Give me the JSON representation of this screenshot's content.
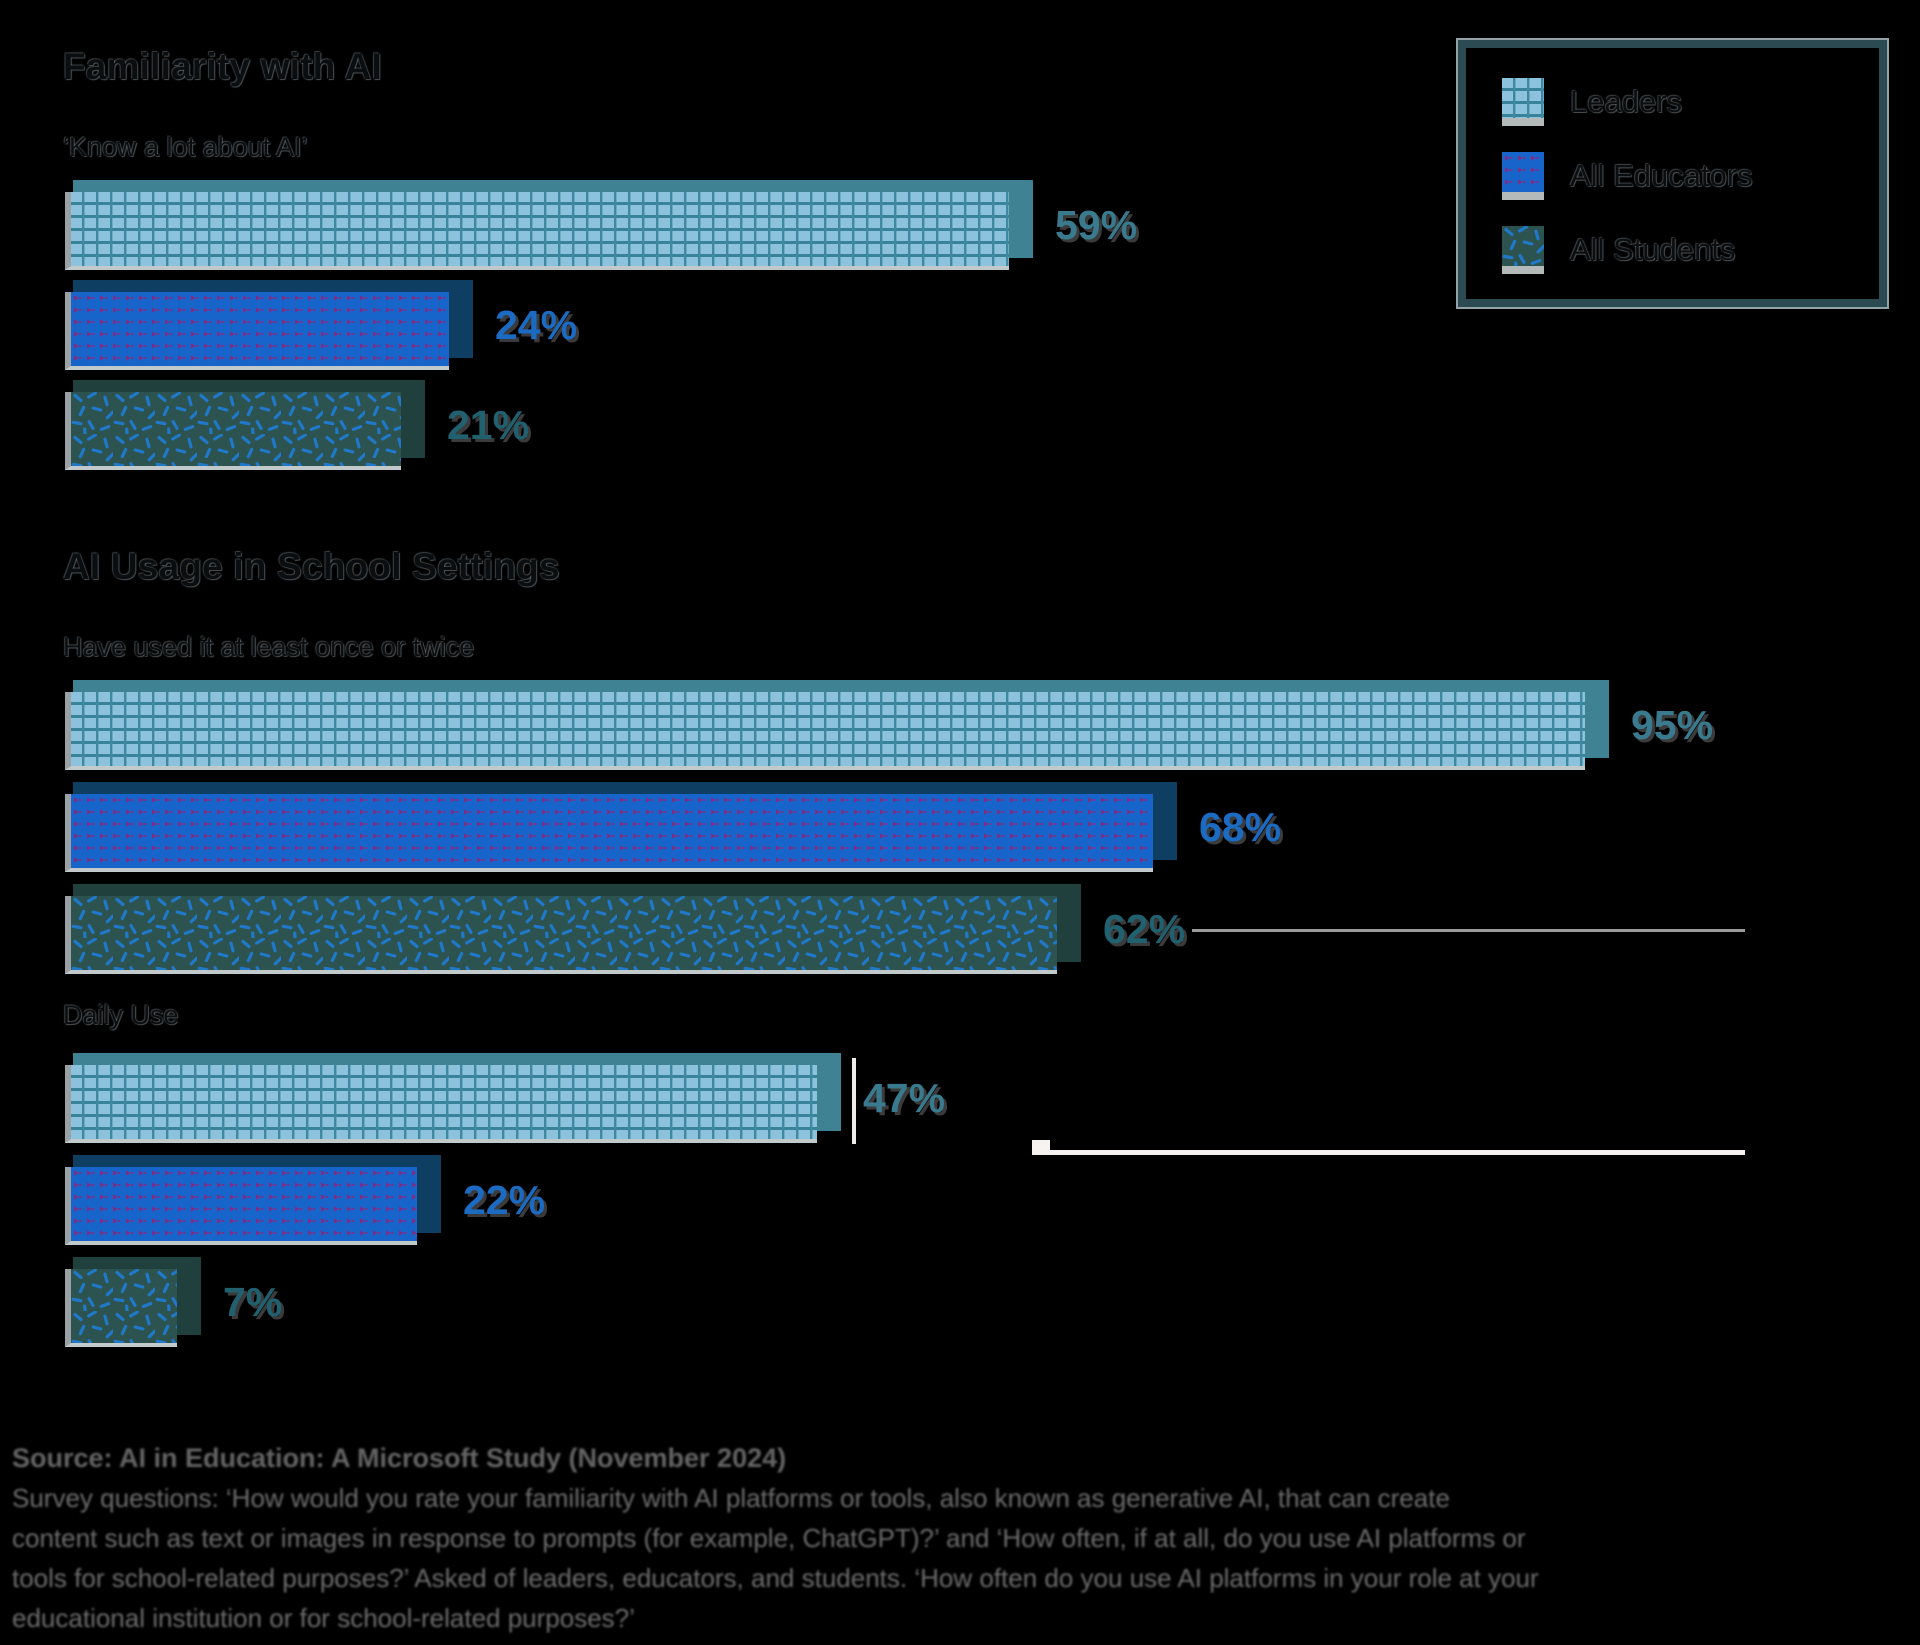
{
  "sections": {
    "familiarity": {
      "title": "Familiarity with AI",
      "subtitle": "‘Know a lot about AI’"
    },
    "usage": {
      "title": "AI Usage in School Settings",
      "subtitle_once": "Have used it at least once or twice",
      "subtitle_daily": "Daily Use"
    }
  },
  "legend": {
    "items": [
      {
        "label": "Leaders",
        "swatch": "grid-pattern-lightblue"
      },
      {
        "label": "All Educators",
        "swatch": "dot-pattern-blue"
      },
      {
        "label": "All Students",
        "swatch": "confetti-pattern-teal"
      }
    ]
  },
  "chart_data": {
    "type": "bar",
    "orientation": "horizontal",
    "unit": "percent",
    "xlim": [
      0,
      100
    ],
    "legend_position": "top-right",
    "series_names": [
      "Leaders",
      "All Educators",
      "All Students"
    ],
    "groups": [
      {
        "section": "Familiarity with AI",
        "measure": "'Know a lot about AI'",
        "values": [
          59,
          24,
          21
        ],
        "labels": [
          "59%",
          "24%",
          "21%"
        ]
      },
      {
        "section": "AI Usage in School Settings",
        "measure": "Have used it at least once or twice",
        "values": [
          95,
          68,
          62
        ],
        "labels": [
          "95%",
          "68%",
          "62%"
        ]
      },
      {
        "section": "AI Usage in School Settings",
        "measure": "Daily Use",
        "values": [
          47,
          22,
          7
        ],
        "labels": [
          "47%",
          "22%",
          "7%"
        ]
      }
    ],
    "colors": {
      "leaders_fill": "#8cc2dc",
      "leaders_grid": "#38839a",
      "leaders_shadow": "#3e8294",
      "educators_fill": "#1765cb",
      "educators_dots": "#7c2e86",
      "educators_shadow": "#0e3e62",
      "students_fill": "#2d5350",
      "students_dashes": "#1f78c8",
      "students_shadow": "#20403d",
      "leaders_value_label": "#3a7a8e",
      "educators_value_label": "#1c6bc2",
      "students_value_label": "#20606f"
    }
  },
  "footer": {
    "source_line": "Source: AI in Education: A Microsoft Study (November 2024)",
    "note_lines": [
      "Survey questions: ‘How would you rate your familiarity with AI platforms or tools, also known as generative AI, that can create",
      "content such as text or images in response to prompts (for example, ChatGPT)?’ and ‘How often, if at all, do you use AI platforms or",
      "tools for school-related purposes?’ Asked of leaders, educators, and students. ‘How often do you use AI platforms in your role at your",
      "educational institution or for school-related purposes?’"
    ]
  }
}
